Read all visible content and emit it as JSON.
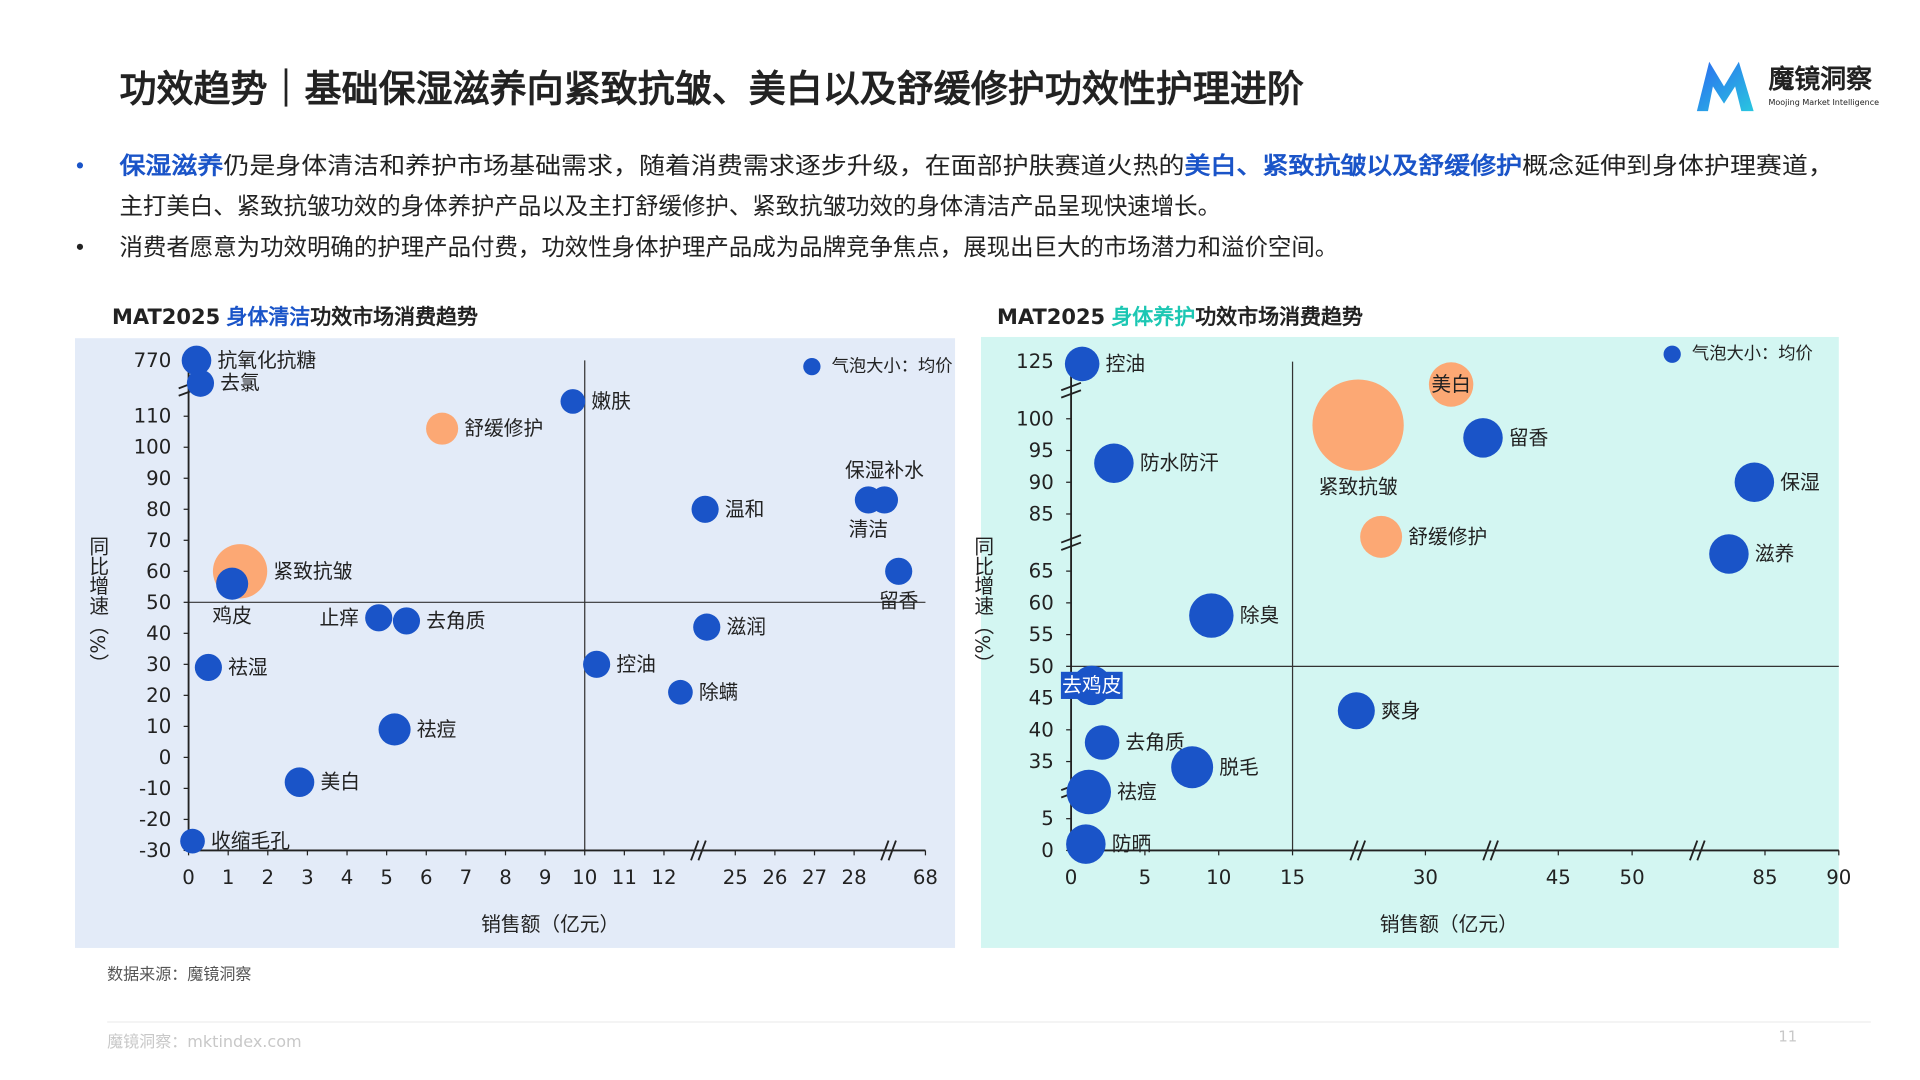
{
  "header": {
    "title": "功效趋势｜基础保湿滋养向紧致抗皱、美白以及舒缓修护功效性护理进阶"
  },
  "logo": {
    "name": "魔镜洞察",
    "tagline": "Moojing Market Intelligence"
  },
  "highlight_color": "#1a54c8",
  "bullets": [
    {
      "lines": [
        [
          {
            "text": "保湿滋养",
            "highlight": true
          },
          {
            "text": "仍是身体清洁和养护市场基础需求，随着消费需求逐步升级，在面部护肤赛道火热的"
          },
          {
            "text": "美白、紧致抗皱以及舒缓修护",
            "highlight": true
          },
          {
            "text": "概念延伸到身体护理赛道，"
          }
        ],
        [
          {
            "text": "主打美白、紧致抗皱功效的身体养护产品以及主打舒缓修护、紧致抗皱功效的身体清洁产品呈现快速增长。"
          }
        ]
      ]
    },
    {
      "lines": [
        [
          {
            "text": "消费者愿意为功效明确的护理产品付费，功效性身体护理产品成为品牌竞争焦点，展现出巨大的市场潜力和溢价空间。"
          }
        ]
      ]
    }
  ],
  "chart_data": [
    {
      "type": "bubble",
      "title_parts": [
        "MAT2025",
        "身体清洁",
        "功效市场消费趋势"
      ],
      "title_highlight_color": "#1a54c8",
      "xlabel": "销售额（亿元）",
      "ylabel": "同比增速（%）",
      "background": "#e3ebf8",
      "legend": "top-right",
      "xlim": [
        0,
        68
      ],
      "ylim": [
        -30,
        770
      ],
      "xticks": [
        0,
        1,
        2,
        3,
        4,
        5,
        6,
        7,
        8,
        9,
        10,
        11,
        12,
        25,
        26,
        27,
        28,
        68
      ],
      "yticks": [
        -30,
        -20,
        -10,
        0,
        10,
        20,
        30,
        40,
        50,
        60,
        70,
        80,
        90,
        100,
        110,
        770
      ],
      "reference_lines": {
        "x": 10,
        "y": 50
      },
      "series": [
        {
          "name": "气泡大小：均价",
          "color": "#1a54c8",
          "labels": [
            "抗氧化抗糖",
            "去氯",
            "嫩肤",
            "舒缓修护",
            "清洁",
            "保湿补水",
            "温和",
            "留香",
            "紧致抗皱",
            "鸡皮",
            "止痒",
            "去角质",
            "滋润",
            "控油",
            "祛湿",
            "除螨",
            "祛痘",
            "美白",
            "收缩毛孔"
          ],
          "x": [
            0.2,
            0.3,
            9.7,
            6.4,
            36,
            45,
            19.5,
            53,
            1.3,
            1.1,
            4.8,
            5.5,
            19.8,
            10.3,
            0.5,
            15,
            5.2,
            2.8,
            0.1
          ],
          "values": [
            770,
            500,
            285,
            106,
            83,
            83,
            80,
            60,
            60,
            56,
            45,
            44,
            42,
            30,
            29,
            21,
            9,
            -8,
            -27
          ],
          "sizes": [
            144,
            121,
            100,
            169,
            121,
            121,
            121,
            121,
            484,
            169,
            121,
            121,
            121,
            121,
            121,
            100,
            169,
            144,
            100
          ],
          "point_colors": [
            "#1a54c8",
            "#1a54c8",
            "#1a54c8",
            "#fca874",
            "#1a54c8",
            "#1a54c8",
            "#1a54c8",
            "#1a54c8",
            "#fca874",
            "#1a54c8",
            "#1a54c8",
            "#1a54c8",
            "#1a54c8",
            "#1a54c8",
            "#1a54c8",
            "#1a54c8",
            "#1a54c8",
            "#1a54c8",
            "#1a54c8"
          ]
        }
      ]
    },
    {
      "type": "bubble",
      "title_parts": [
        "MAT2025",
        "身体养护",
        "功效市场消费趋势"
      ],
      "title_highlight_color": "#1cc7b3",
      "xlabel": "销售额（亿元）",
      "ylabel": "同比增速（%）",
      "background": "#d3f6f2",
      "legend": "top-right",
      "xlim": [
        0,
        90
      ],
      "ylim": [
        0,
        125
      ],
      "xticks": [
        0,
        5,
        10,
        15,
        30,
        45,
        50,
        85,
        90
      ],
      "yticks": [
        0,
        5,
        35,
        40,
        45,
        50,
        55,
        60,
        65,
        85,
        90,
        95,
        100,
        125
      ],
      "reference_lines": {
        "x": 15,
        "y": 50
      },
      "series": [
        {
          "name": "气泡大小：均价",
          "color": "#1a54c8",
          "labels": [
            "控油",
            "美白",
            "紧致抗皱",
            "留香",
            "防水防汗",
            "保湿",
            "舒缓修护",
            "滋养",
            "除臭",
            "去鸡皮",
            "爽身",
            "去角质",
            "脱毛",
            "祛痘",
            "防晒"
          ],
          "x": [
            0.75,
            32.9,
            22.4,
            36.5,
            2.9,
            82.2,
            25,
            75.5,
            9.5,
            1.4,
            22.2,
            2.1,
            8.2,
            1.2,
            1.0
          ],
          "values": [
            124,
            115,
            99,
            97,
            93,
            90,
            77,
            71,
            58,
            47,
            43,
            38,
            32,
            19,
            1
          ],
          "sizes": [
            196,
            324,
            1369,
            256,
            256,
            256,
            289,
            256,
            324,
            256,
            225,
            196,
            289,
            324,
            256
          ],
          "point_colors": [
            "#1a54c8",
            "#fca874",
            "#fca874",
            "#1a54c8",
            "#1a54c8",
            "#1a54c8",
            "#fca874",
            "#1a54c8",
            "#1a54c8",
            "#1a54c8",
            "#1a54c8",
            "#1a54c8",
            "#1a54c8",
            "#1a54c8",
            "#1a54c8"
          ]
        }
      ]
    }
  ],
  "source": "数据来源：魔镜洞察",
  "footer": {
    "text": "魔镜洞察：mktindex.com",
    "page": "11"
  }
}
